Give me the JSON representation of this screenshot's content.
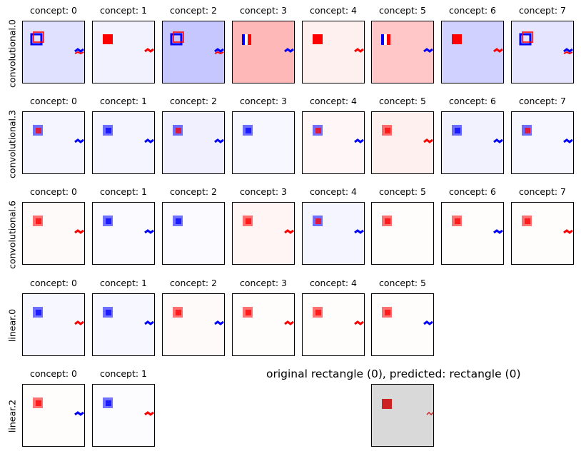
{
  "figure_title": "original rectangle (0), predicted: rectangle (0)",
  "colors": {
    "positive": "#ff0000",
    "negative": "#0000ff",
    "original_bg": "#d9d9d9",
    "original_mark": "#cc2222"
  },
  "chart_data": {
    "type": "heatmap",
    "rows": [
      {
        "layer": "convolutional.0",
        "panels": [
          {
            "title": "concept: 0",
            "background": "blue",
            "bg_intensity": 0.12,
            "marks": [
              {
                "kind": "frame",
                "sign": "mixed",
                "pos": "rect"
              },
              {
                "kind": "small",
                "sign": "mixed",
                "pos": "right"
              }
            ]
          },
          {
            "title": "concept: 1",
            "background": "blue",
            "bg_intensity": 0.05,
            "marks": [
              {
                "kind": "solid",
                "sign": "pos",
                "pos": "rect"
              },
              {
                "kind": "small",
                "sign": "pos",
                "pos": "right"
              }
            ]
          },
          {
            "title": "concept: 2",
            "background": "blue",
            "bg_intensity": 0.22,
            "marks": [
              {
                "kind": "frame",
                "sign": "mixed",
                "pos": "rect"
              },
              {
                "kind": "small",
                "sign": "mixed",
                "pos": "right"
              }
            ]
          },
          {
            "title": "concept: 3",
            "background": "red",
            "bg_intensity": 0.28,
            "marks": [
              {
                "kind": "bars",
                "sign": "mixed",
                "pos": "rect"
              },
              {
                "kind": "small",
                "sign": "neg",
                "pos": "right"
              }
            ]
          },
          {
            "title": "concept: 4",
            "background": "red",
            "bg_intensity": 0.06,
            "marks": [
              {
                "kind": "solid",
                "sign": "pos",
                "pos": "rect"
              },
              {
                "kind": "small",
                "sign": "pos",
                "pos": "right"
              }
            ]
          },
          {
            "title": "concept: 5",
            "background": "red",
            "bg_intensity": 0.22,
            "marks": [
              {
                "kind": "bars",
                "sign": "mixed",
                "pos": "rect"
              },
              {
                "kind": "small",
                "sign": "neg",
                "pos": "right"
              }
            ]
          },
          {
            "title": "concept: 6",
            "background": "blue",
            "bg_intensity": 0.18,
            "marks": [
              {
                "kind": "solid",
                "sign": "pos",
                "pos": "rect"
              },
              {
                "kind": "small",
                "sign": "pos",
                "pos": "right"
              }
            ]
          },
          {
            "title": "concept: 7",
            "background": "blue",
            "bg_intensity": 0.1,
            "marks": [
              {
                "kind": "frame",
                "sign": "mixed",
                "pos": "rect"
              },
              {
                "kind": "small",
                "sign": "mixed",
                "pos": "right"
              }
            ]
          }
        ]
      },
      {
        "layer": "convolutional.3",
        "panels": [
          {
            "title": "concept: 0",
            "background": "blue",
            "bg_intensity": 0.04,
            "marks": [
              {
                "kind": "blob",
                "sign": "mixed",
                "pos": "rect"
              },
              {
                "kind": "small",
                "sign": "neg",
                "pos": "right"
              }
            ]
          },
          {
            "title": "concept: 1",
            "background": "blue",
            "bg_intensity": 0.04,
            "marks": [
              {
                "kind": "blob",
                "sign": "neg",
                "pos": "rect"
              },
              {
                "kind": "small",
                "sign": "neg",
                "pos": "right"
              }
            ]
          },
          {
            "title": "concept: 2",
            "background": "blue",
            "bg_intensity": 0.06,
            "marks": [
              {
                "kind": "blob",
                "sign": "mixed",
                "pos": "rect"
              },
              {
                "kind": "small",
                "sign": "neg",
                "pos": "right"
              }
            ]
          },
          {
            "title": "concept: 3",
            "background": "blue",
            "bg_intensity": 0.03,
            "marks": [
              {
                "kind": "blob",
                "sign": "neg",
                "pos": "rect"
              }
            ]
          },
          {
            "title": "concept: 4",
            "background": "red",
            "bg_intensity": 0.03,
            "marks": [
              {
                "kind": "blob",
                "sign": "mixed",
                "pos": "rect"
              },
              {
                "kind": "small",
                "sign": "neg",
                "pos": "right"
              }
            ]
          },
          {
            "title": "concept: 5",
            "background": "red",
            "bg_intensity": 0.06,
            "marks": [
              {
                "kind": "blob",
                "sign": "pos",
                "pos": "rect"
              },
              {
                "kind": "small",
                "sign": "pos",
                "pos": "right"
              }
            ]
          },
          {
            "title": "concept: 6",
            "background": "blue",
            "bg_intensity": 0.05,
            "marks": [
              {
                "kind": "blob",
                "sign": "neg",
                "pos": "rect"
              },
              {
                "kind": "small",
                "sign": "neg",
                "pos": "right"
              }
            ]
          },
          {
            "title": "concept: 7",
            "background": "blue",
            "bg_intensity": 0.03,
            "marks": [
              {
                "kind": "blob",
                "sign": "mixed",
                "pos": "rect"
              },
              {
                "kind": "small",
                "sign": "neg",
                "pos": "right"
              }
            ]
          }
        ]
      },
      {
        "layer": "convolutional.6",
        "panels": [
          {
            "title": "concept: 0",
            "background": "red",
            "bg_intensity": 0.02,
            "marks": [
              {
                "kind": "blob",
                "sign": "pos",
                "pos": "rect"
              },
              {
                "kind": "small",
                "sign": "pos",
                "pos": "right"
              }
            ]
          },
          {
            "title": "concept: 1",
            "background": "blue",
            "bg_intensity": 0.02,
            "marks": [
              {
                "kind": "blob",
                "sign": "neg",
                "pos": "rect"
              },
              {
                "kind": "small",
                "sign": "neg",
                "pos": "right"
              }
            ]
          },
          {
            "title": "concept: 2",
            "background": "blue",
            "bg_intensity": 0.02,
            "marks": [
              {
                "kind": "blob",
                "sign": "neg",
                "pos": "rect"
              }
            ]
          },
          {
            "title": "concept: 3",
            "background": "red",
            "bg_intensity": 0.04,
            "marks": [
              {
                "kind": "blob",
                "sign": "pos",
                "pos": "rect"
              },
              {
                "kind": "small",
                "sign": "pos",
                "pos": "right"
              }
            ]
          },
          {
            "title": "concept: 4",
            "background": "blue",
            "bg_intensity": 0.04,
            "marks": [
              {
                "kind": "blob",
                "sign": "mixed",
                "pos": "rect"
              },
              {
                "kind": "small",
                "sign": "neg",
                "pos": "right"
              }
            ]
          },
          {
            "title": "concept: 5",
            "background": "red",
            "bg_intensity": 0.01,
            "marks": [
              {
                "kind": "blob",
                "sign": "pos",
                "pos": "rect"
              }
            ]
          },
          {
            "title": "concept: 6",
            "background": "red",
            "bg_intensity": 0.01,
            "marks": [
              {
                "kind": "blob",
                "sign": "pos",
                "pos": "rect"
              },
              {
                "kind": "small",
                "sign": "neg",
                "pos": "right"
              }
            ]
          },
          {
            "title": "concept: 7",
            "background": "red",
            "bg_intensity": 0.01,
            "marks": [
              {
                "kind": "blob",
                "sign": "pos",
                "pos": "rect"
              },
              {
                "kind": "small",
                "sign": "pos",
                "pos": "right"
              }
            ]
          }
        ]
      },
      {
        "layer": "linear.0",
        "panels": [
          {
            "title": "concept: 0",
            "background": "blue",
            "bg_intensity": 0.03,
            "marks": [
              {
                "kind": "blob",
                "sign": "neg",
                "pos": "rect"
              },
              {
                "kind": "small",
                "sign": "pos",
                "pos": "right"
              }
            ]
          },
          {
            "title": "concept: 1",
            "background": "blue",
            "bg_intensity": 0.03,
            "marks": [
              {
                "kind": "blob",
                "sign": "neg",
                "pos": "rect"
              },
              {
                "kind": "small",
                "sign": "neg",
                "pos": "right"
              }
            ]
          },
          {
            "title": "concept: 2",
            "background": "red",
            "bg_intensity": 0.02,
            "marks": [
              {
                "kind": "blob",
                "sign": "pos",
                "pos": "rect"
              },
              {
                "kind": "small",
                "sign": "neg",
                "pos": "right"
              }
            ]
          },
          {
            "title": "concept: 3",
            "background": "red",
            "bg_intensity": 0.01,
            "marks": [
              {
                "kind": "blob",
                "sign": "pos",
                "pos": "rect"
              },
              {
                "kind": "small",
                "sign": "pos",
                "pos": "right"
              }
            ]
          },
          {
            "title": "concept: 4",
            "background": "red",
            "bg_intensity": 0.01,
            "marks": [
              {
                "kind": "blob",
                "sign": "pos",
                "pos": "rect"
              },
              {
                "kind": "small",
                "sign": "pos",
                "pos": "right"
              }
            ]
          },
          {
            "title": "concept: 5",
            "background": "red",
            "bg_intensity": 0.01,
            "marks": [
              {
                "kind": "blob",
                "sign": "pos",
                "pos": "rect"
              },
              {
                "kind": "small",
                "sign": "neg",
                "pos": "right"
              }
            ]
          }
        ]
      },
      {
        "layer": "linear.2",
        "panels": [
          {
            "title": "concept: 0",
            "background": "red",
            "bg_intensity": 0.01,
            "marks": [
              {
                "kind": "blob",
                "sign": "pos",
                "pos": "rect"
              },
              {
                "kind": "small",
                "sign": "neg",
                "pos": "right"
              }
            ]
          },
          {
            "title": "concept: 1",
            "background": "blue",
            "bg_intensity": 0.01,
            "marks": [
              {
                "kind": "blob",
                "sign": "neg",
                "pos": "rect"
              },
              {
                "kind": "small",
                "sign": "pos",
                "pos": "right"
              }
            ]
          }
        ]
      }
    ],
    "original_panel": {
      "label": "original rectangle (0), predicted: rectangle (0)"
    }
  }
}
